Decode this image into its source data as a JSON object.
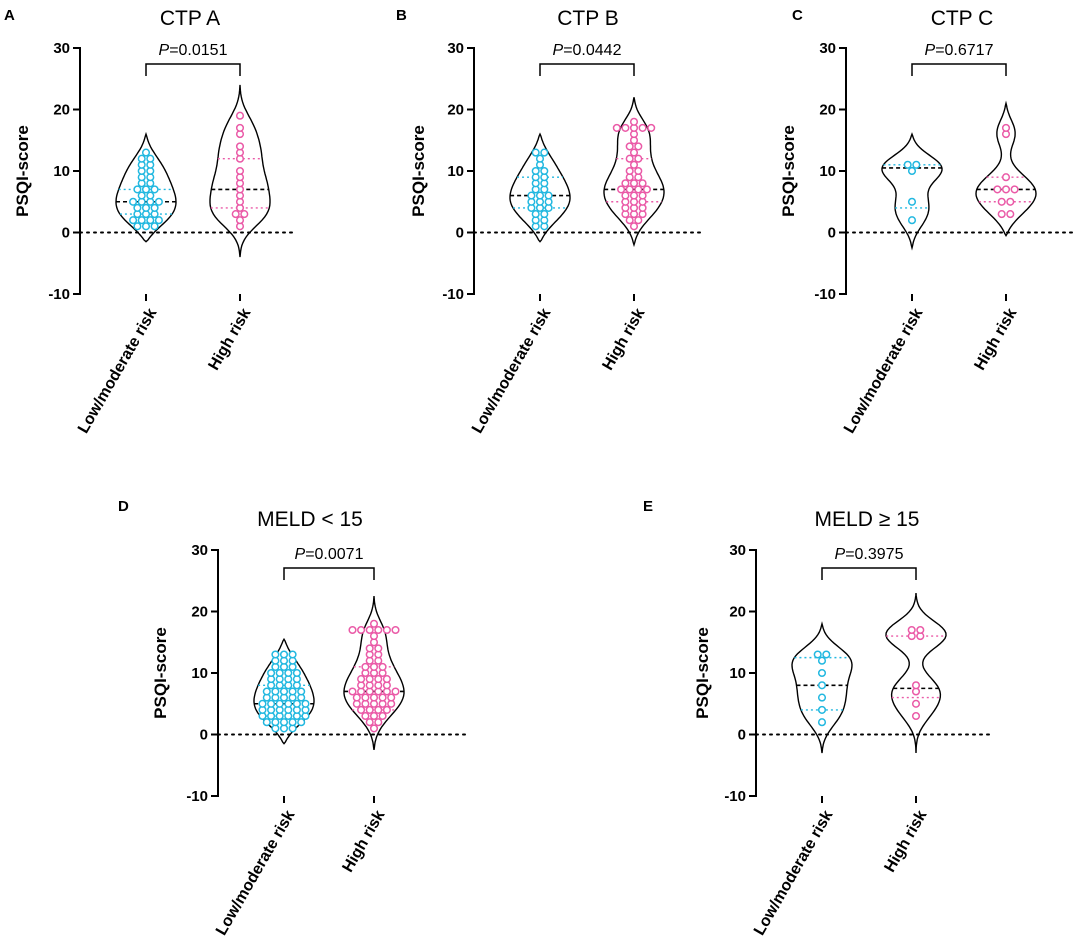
{
  "y_axis": {
    "label": "PSQI-score",
    "ticks": [
      -10,
      0,
      10,
      20,
      30
    ],
    "ylim": [
      -10,
      30
    ]
  },
  "categories": [
    "Low/moderate risk",
    "High risk"
  ],
  "colors": {
    "low": "#22b8e0",
    "high": "#ea5aa7",
    "median": "#000000",
    "axis": "#000000"
  },
  "chart_data": [
    {
      "panel": "A",
      "type": "violin",
      "title": "CTP A",
      "p_prefix": "P",
      "p_value": "=0.0151",
      "categories": [
        "Low/moderate risk",
        "High risk"
      ],
      "ylim": [
        -10,
        30
      ],
      "ylabel": "PSQI-score",
      "series": [
        {
          "name": "Low/moderate risk",
          "range": [
            -1.5,
            16
          ],
          "median": 5,
          "q1": 3,
          "q3": 7,
          "points": [
            1,
            1,
            1,
            2,
            2,
            2,
            2,
            3,
            3,
            3,
            4,
            4,
            4,
            5,
            5,
            5,
            5,
            6,
            6,
            7,
            7,
            7,
            8,
            8,
            9,
            9,
            10,
            10,
            11,
            11,
            12,
            12,
            13
          ]
        },
        {
          "name": "High risk",
          "range": [
            -4,
            24
          ],
          "median": 7,
          "q1": 4,
          "q3": 12,
          "points": [
            1,
            2,
            3,
            3,
            4,
            5,
            6,
            7,
            8,
            9,
            10,
            12,
            13,
            14,
            16,
            17,
            19
          ]
        }
      ]
    },
    {
      "panel": "B",
      "type": "violin",
      "title": "CTP B",
      "p_prefix": "P",
      "p_value": "=0.0442",
      "categories": [
        "Low/moderate risk",
        "High risk"
      ],
      "ylim": [
        -10,
        30
      ],
      "ylabel": "PSQI-score",
      "series": [
        {
          "name": "Low/moderate risk",
          "range": [
            -1.5,
            16
          ],
          "median": 6,
          "q1": 4,
          "q3": 9,
          "points": [
            1,
            1,
            2,
            2,
            3,
            3,
            4,
            4,
            4,
            5,
            5,
            5,
            6,
            6,
            6,
            7,
            7,
            8,
            8,
            9,
            9,
            10,
            10,
            11,
            12,
            13,
            13
          ]
        },
        {
          "name": "High risk",
          "range": [
            -2,
            22
          ],
          "median": 7,
          "q1": 5,
          "q3": 12,
          "points": [
            1,
            2,
            2,
            3,
            3,
            3,
            4,
            4,
            4,
            5,
            5,
            5,
            6,
            6,
            6,
            7,
            7,
            7,
            7,
            8,
            8,
            8,
            9,
            9,
            10,
            10,
            11,
            12,
            12,
            13,
            14,
            14,
            15,
            16,
            17,
            17,
            17,
            17,
            17,
            18
          ]
        }
      ]
    },
    {
      "panel": "C",
      "type": "violin",
      "title": "CTP C",
      "p_prefix": "P",
      "p_value": "=0.6717",
      "categories": [
        "Low/moderate risk",
        "High risk"
      ],
      "ylim": [
        -10,
        30
      ],
      "ylabel": "PSQI-score",
      "series": [
        {
          "name": "Low/moderate risk",
          "range": [
            -2.5,
            16
          ],
          "median": 10.5,
          "q1": 4,
          "q3": 11,
          "points": [
            2,
            5,
            10,
            11,
            11
          ]
        },
        {
          "name": "High risk",
          "range": [
            -0.5,
            21
          ],
          "median": 7,
          "q1": 5,
          "q3": 9,
          "points": [
            3,
            3,
            5,
            5,
            7,
            7,
            7,
            9,
            16,
            17
          ]
        }
      ]
    },
    {
      "panel": "D",
      "type": "violin",
      "title": "MELD < 15",
      "p_prefix": "P",
      "p_value": "=0.0071",
      "categories": [
        "Low/moderate risk",
        "High risk"
      ],
      "ylim": [
        -10,
        30
      ],
      "ylabel": "PSQI-score",
      "series": [
        {
          "name": "Low/moderate risk",
          "range": [
            -1.5,
            15.5
          ],
          "median": 5,
          "q1": 3,
          "q3": 8,
          "points": [
            1,
            1,
            1,
            2,
            2,
            2,
            2,
            2,
            3,
            3,
            3,
            3,
            3,
            3,
            4,
            4,
            4,
            4,
            4,
            4,
            5,
            5,
            5,
            5,
            5,
            5,
            6,
            6,
            6,
            6,
            6,
            7,
            7,
            7,
            7,
            7,
            8,
            8,
            8,
            8,
            9,
            9,
            9,
            9,
            10,
            10,
            10,
            10,
            11,
            11,
            11,
            12,
            12,
            12,
            13,
            13,
            13
          ]
        },
        {
          "name": "High risk",
          "range": [
            -2.5,
            22.5
          ],
          "median": 7,
          "q1": 4,
          "q3": 11,
          "points": [
            1,
            2,
            2,
            3,
            3,
            3,
            4,
            4,
            4,
            4,
            5,
            5,
            5,
            5,
            5,
            6,
            6,
            6,
            6,
            6,
            7,
            7,
            7,
            7,
            7,
            7,
            8,
            8,
            8,
            8,
            9,
            9,
            9,
            9,
            10,
            10,
            10,
            11,
            11,
            11,
            12,
            12,
            13,
            13,
            14,
            14,
            15,
            16,
            17,
            17,
            17,
            17,
            17,
            17,
            18
          ]
        }
      ]
    },
    {
      "panel": "E",
      "type": "violin",
      "title": "MELD ≥ 15",
      "p_prefix": "P",
      "p_value": "=0.3975",
      "categories": [
        "Low/moderate risk",
        "High risk"
      ],
      "ylim": [
        -10,
        30
      ],
      "ylabel": "PSQI-score",
      "series": [
        {
          "name": "Low/moderate risk",
          "range": [
            -3,
            18
          ],
          "median": 8,
          "q1": 4,
          "q3": 12.5,
          "points": [
            2,
            4,
            6,
            8,
            10,
            12,
            13,
            13
          ]
        },
        {
          "name": "High risk",
          "range": [
            -3,
            23
          ],
          "median": 7.5,
          "q1": 6,
          "q3": 16,
          "points": [
            3,
            5,
            7,
            8,
            16,
            16,
            17,
            17
          ]
        }
      ]
    }
  ]
}
